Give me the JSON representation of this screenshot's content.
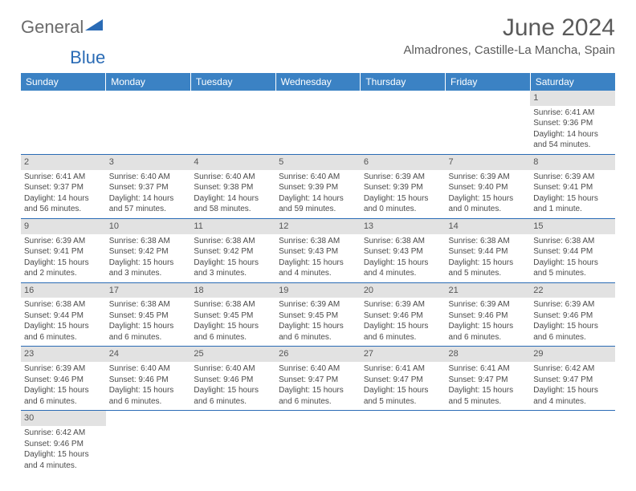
{
  "logo": {
    "gray": "General",
    "blue": "Blue"
  },
  "title": "June 2024",
  "location": "Almadrones, Castille-La Mancha, Spain",
  "colors": {
    "header_bg": "#3b82c4",
    "header_text": "#ffffff",
    "daynum_bg": "#e2e2e2",
    "border": "#2a6bb5",
    "text": "#4a4a4a",
    "title": "#5a5a5a"
  },
  "weekdays": [
    "Sunday",
    "Monday",
    "Tuesday",
    "Wednesday",
    "Thursday",
    "Friday",
    "Saturday"
  ],
  "weeks": [
    [
      null,
      null,
      null,
      null,
      null,
      null,
      {
        "n": "1",
        "sr": "Sunrise: 6:41 AM",
        "ss": "Sunset: 9:36 PM",
        "dl": "Daylight: 14 hours and 54 minutes."
      }
    ],
    [
      {
        "n": "2",
        "sr": "Sunrise: 6:41 AM",
        "ss": "Sunset: 9:37 PM",
        "dl": "Daylight: 14 hours and 56 minutes."
      },
      {
        "n": "3",
        "sr": "Sunrise: 6:40 AM",
        "ss": "Sunset: 9:37 PM",
        "dl": "Daylight: 14 hours and 57 minutes."
      },
      {
        "n": "4",
        "sr": "Sunrise: 6:40 AM",
        "ss": "Sunset: 9:38 PM",
        "dl": "Daylight: 14 hours and 58 minutes."
      },
      {
        "n": "5",
        "sr": "Sunrise: 6:40 AM",
        "ss": "Sunset: 9:39 PM",
        "dl": "Daylight: 14 hours and 59 minutes."
      },
      {
        "n": "6",
        "sr": "Sunrise: 6:39 AM",
        "ss": "Sunset: 9:39 PM",
        "dl": "Daylight: 15 hours and 0 minutes."
      },
      {
        "n": "7",
        "sr": "Sunrise: 6:39 AM",
        "ss": "Sunset: 9:40 PM",
        "dl": "Daylight: 15 hours and 0 minutes."
      },
      {
        "n": "8",
        "sr": "Sunrise: 6:39 AM",
        "ss": "Sunset: 9:41 PM",
        "dl": "Daylight: 15 hours and 1 minute."
      }
    ],
    [
      {
        "n": "9",
        "sr": "Sunrise: 6:39 AM",
        "ss": "Sunset: 9:41 PM",
        "dl": "Daylight: 15 hours and 2 minutes."
      },
      {
        "n": "10",
        "sr": "Sunrise: 6:38 AM",
        "ss": "Sunset: 9:42 PM",
        "dl": "Daylight: 15 hours and 3 minutes."
      },
      {
        "n": "11",
        "sr": "Sunrise: 6:38 AM",
        "ss": "Sunset: 9:42 PM",
        "dl": "Daylight: 15 hours and 3 minutes."
      },
      {
        "n": "12",
        "sr": "Sunrise: 6:38 AM",
        "ss": "Sunset: 9:43 PM",
        "dl": "Daylight: 15 hours and 4 minutes."
      },
      {
        "n": "13",
        "sr": "Sunrise: 6:38 AM",
        "ss": "Sunset: 9:43 PM",
        "dl": "Daylight: 15 hours and 4 minutes."
      },
      {
        "n": "14",
        "sr": "Sunrise: 6:38 AM",
        "ss": "Sunset: 9:44 PM",
        "dl": "Daylight: 15 hours and 5 minutes."
      },
      {
        "n": "15",
        "sr": "Sunrise: 6:38 AM",
        "ss": "Sunset: 9:44 PM",
        "dl": "Daylight: 15 hours and 5 minutes."
      }
    ],
    [
      {
        "n": "16",
        "sr": "Sunrise: 6:38 AM",
        "ss": "Sunset: 9:44 PM",
        "dl": "Daylight: 15 hours and 6 minutes."
      },
      {
        "n": "17",
        "sr": "Sunrise: 6:38 AM",
        "ss": "Sunset: 9:45 PM",
        "dl": "Daylight: 15 hours and 6 minutes."
      },
      {
        "n": "18",
        "sr": "Sunrise: 6:38 AM",
        "ss": "Sunset: 9:45 PM",
        "dl": "Daylight: 15 hours and 6 minutes."
      },
      {
        "n": "19",
        "sr": "Sunrise: 6:39 AM",
        "ss": "Sunset: 9:45 PM",
        "dl": "Daylight: 15 hours and 6 minutes."
      },
      {
        "n": "20",
        "sr": "Sunrise: 6:39 AM",
        "ss": "Sunset: 9:46 PM",
        "dl": "Daylight: 15 hours and 6 minutes."
      },
      {
        "n": "21",
        "sr": "Sunrise: 6:39 AM",
        "ss": "Sunset: 9:46 PM",
        "dl": "Daylight: 15 hours and 6 minutes."
      },
      {
        "n": "22",
        "sr": "Sunrise: 6:39 AM",
        "ss": "Sunset: 9:46 PM",
        "dl": "Daylight: 15 hours and 6 minutes."
      }
    ],
    [
      {
        "n": "23",
        "sr": "Sunrise: 6:39 AM",
        "ss": "Sunset: 9:46 PM",
        "dl": "Daylight: 15 hours and 6 minutes."
      },
      {
        "n": "24",
        "sr": "Sunrise: 6:40 AM",
        "ss": "Sunset: 9:46 PM",
        "dl": "Daylight: 15 hours and 6 minutes."
      },
      {
        "n": "25",
        "sr": "Sunrise: 6:40 AM",
        "ss": "Sunset: 9:46 PM",
        "dl": "Daylight: 15 hours and 6 minutes."
      },
      {
        "n": "26",
        "sr": "Sunrise: 6:40 AM",
        "ss": "Sunset: 9:47 PM",
        "dl": "Daylight: 15 hours and 6 minutes."
      },
      {
        "n": "27",
        "sr": "Sunrise: 6:41 AM",
        "ss": "Sunset: 9:47 PM",
        "dl": "Daylight: 15 hours and 5 minutes."
      },
      {
        "n": "28",
        "sr": "Sunrise: 6:41 AM",
        "ss": "Sunset: 9:47 PM",
        "dl": "Daylight: 15 hours and 5 minutes."
      },
      {
        "n": "29",
        "sr": "Sunrise: 6:42 AM",
        "ss": "Sunset: 9:47 PM",
        "dl": "Daylight: 15 hours and 4 minutes."
      }
    ],
    [
      {
        "n": "30",
        "sr": "Sunrise: 6:42 AM",
        "ss": "Sunset: 9:46 PM",
        "dl": "Daylight: 15 hours and 4 minutes."
      },
      null,
      null,
      null,
      null,
      null,
      null
    ]
  ]
}
